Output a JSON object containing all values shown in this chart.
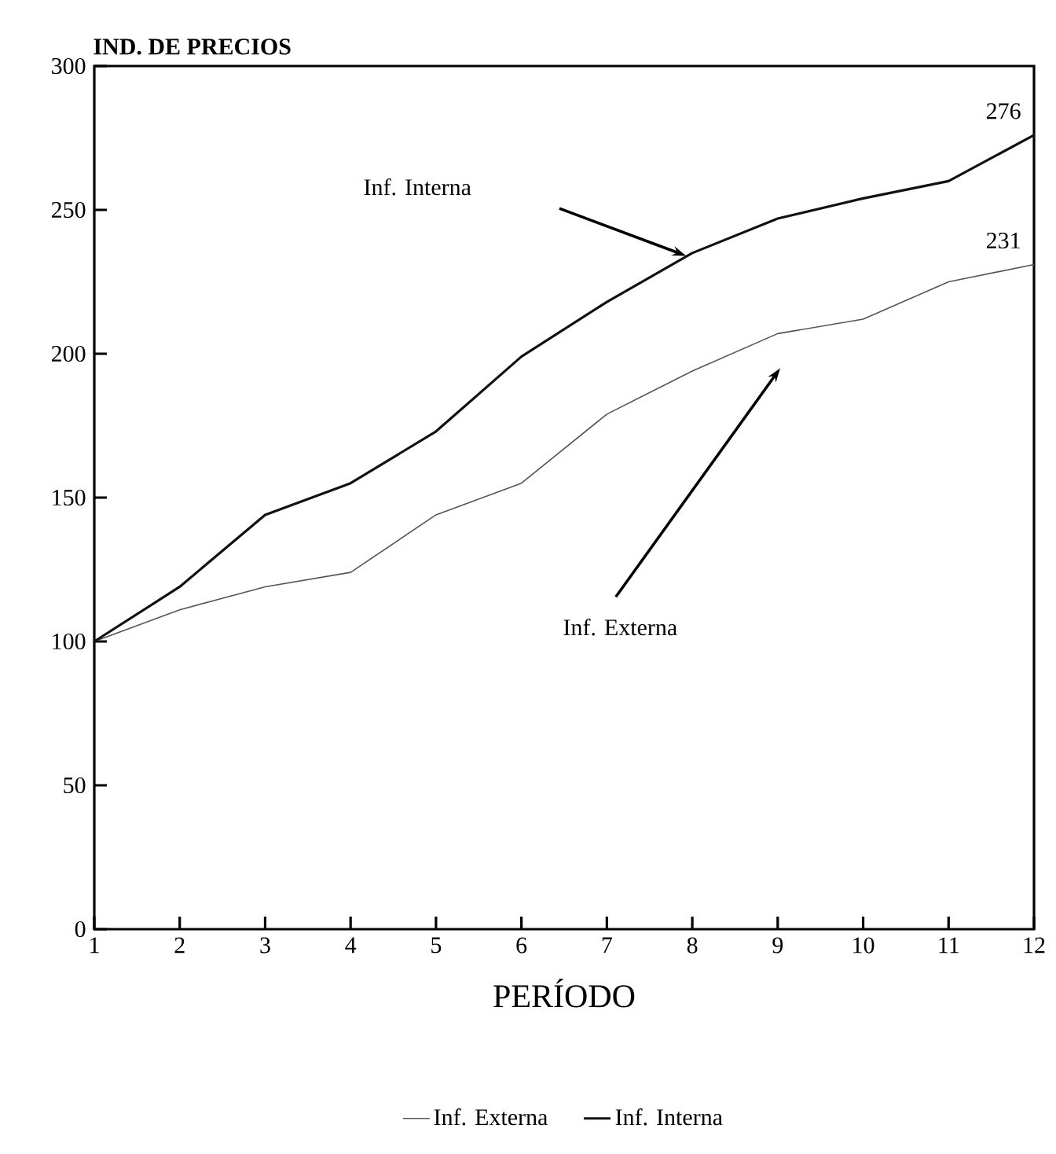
{
  "chart_data": {
    "type": "line",
    "ylabel": "IND. DE PRECIOS",
    "xlabel": "PERÍODO",
    "x": [
      1,
      2,
      3,
      4,
      5,
      6,
      7,
      8,
      9,
      10,
      11,
      12
    ],
    "series": [
      {
        "name": "Inf. Externa",
        "color": "#555555",
        "values": [
          100,
          111,
          119,
          124,
          144,
          155,
          179,
          194,
          207,
          212,
          225,
          231
        ]
      },
      {
        "name": "Inf. Interna",
        "color": "#111111",
        "values": [
          100,
          119,
          144,
          155,
          173,
          199,
          218,
          235,
          247,
          254,
          260,
          276
        ]
      }
    ],
    "xlim": [
      1,
      12
    ],
    "xticks": [
      1,
      2,
      3,
      4,
      5,
      6,
      7,
      8,
      9,
      10,
      11,
      12
    ],
    "ylim": [
      0,
      300
    ],
    "yticks": [
      0,
      50,
      100,
      150,
      200,
      250,
      300
    ],
    "annotations": [
      {
        "text": "276",
        "x": 12,
        "y": 276
      },
      {
        "text": "231",
        "x": 12,
        "y": 231
      },
      "Inf. Interna",
      "Inf. Externa"
    ],
    "legend": "bottom",
    "grid": false,
    "marker": "none",
    "line_style": "solid"
  }
}
